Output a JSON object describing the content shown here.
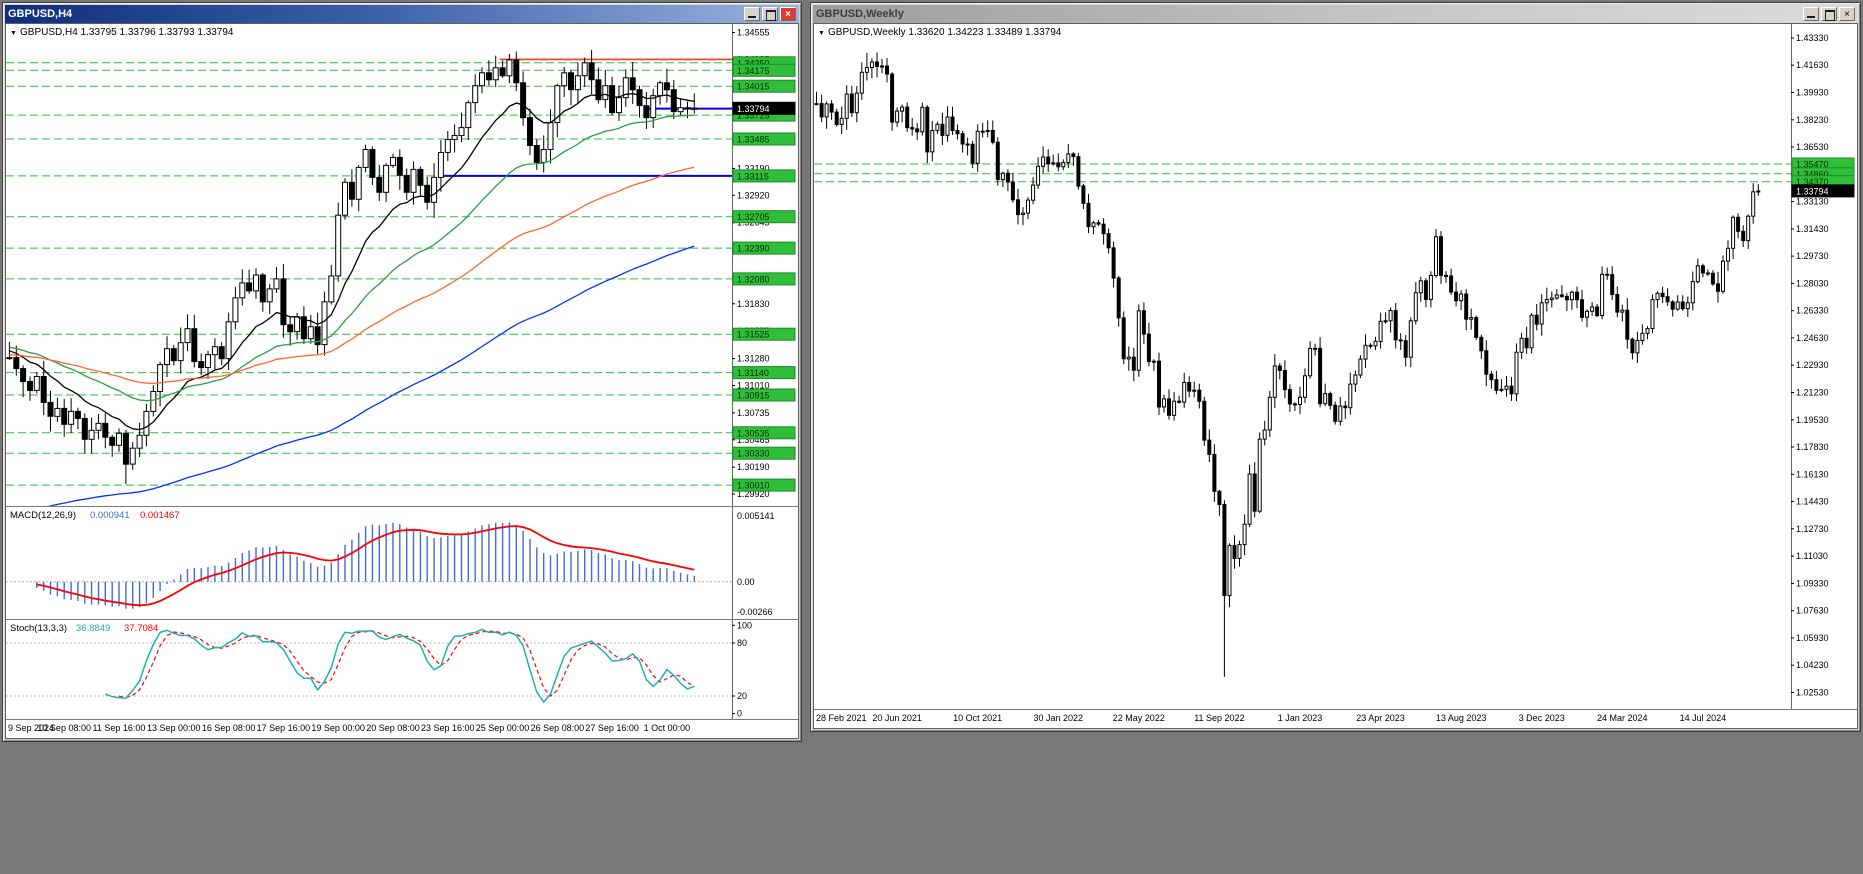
{
  "app": {
    "mdi_background": "#787878"
  },
  "window_buttons": {
    "close_glyph": "×"
  },
  "windows": [
    {
      "title": "GBPUSD,H4",
      "active": true
    },
    {
      "title": "GBPUSD,Weekly",
      "active": false
    }
  ],
  "chart_data": [
    {
      "type": "candlestick",
      "name": "gbpusd-h4",
      "title": "GBPUSD,H4",
      "header_quote": "GBPUSD,H4  1.33795 1.33796 1.33793 1.33794",
      "ohlc_display": {
        "open": "1.33795",
        "high": "1.33796",
        "low": "1.33793",
        "close": "1.33794"
      },
      "current_price": 1.33794,
      "current_price_label": "1.33794",
      "y_domain": [
        1.298,
        1.3464
      ],
      "y_ticks": [
        1.2992,
        1.3019,
        1.30465,
        1.30735,
        1.3101,
        1.3128,
        1.31555,
        1.3183,
        1.321,
        1.3237,
        1.32645,
        1.3292,
        1.3319,
        1.33465,
        1.3374,
        1.3401,
        1.34285,
        1.34555
      ],
      "x_labels": [
        "9 Sep 2024",
        "10 Sep 08:00",
        "11 Sep 16:00",
        "13 Sep 00:00",
        "16 Sep 08:00",
        "17 Sep 16:00",
        "19 Sep 00:00",
        "20 Sep 08:00",
        "23 Sep 16:00",
        "25 Sep 00:00",
        "26 Sep 08:00",
        "27 Sep 16:00",
        "1 Oct 00:00"
      ],
      "x_label_every": 8,
      "right_gap": 5,
      "volatility": 0.0016,
      "closes": [
        1.3129,
        1.3118,
        1.3105,
        1.3096,
        1.311,
        1.3084,
        1.307,
        1.3078,
        1.3062,
        1.3075,
        1.3068,
        1.3047,
        1.3056,
        1.3063,
        1.3049,
        1.3041,
        1.3053,
        1.3022,
        1.3038,
        1.3051,
        1.3075,
        1.3095,
        1.3122,
        1.3138,
        1.3126,
        1.3144,
        1.3158,
        1.3125,
        1.3119,
        1.3132,
        1.314,
        1.3128,
        1.3165,
        1.3189,
        1.3204,
        1.3196,
        1.3212,
        1.3185,
        1.3198,
        1.3208,
        1.3162,
        1.3155,
        1.317,
        1.3148,
        1.316,
        1.3142,
        1.3185,
        1.3211,
        1.3272,
        1.3305,
        1.3288,
        1.332,
        1.3338,
        1.331,
        1.3295,
        1.3322,
        1.333,
        1.3312,
        1.3295,
        1.3318,
        1.3302,
        1.3285,
        1.331,
        1.3335,
        1.3348,
        1.3352,
        1.336,
        1.3385,
        1.3402,
        1.3415,
        1.3408,
        1.342,
        1.3412,
        1.3428,
        1.3405,
        1.337,
        1.3342,
        1.3325,
        1.3338,
        1.3365,
        1.3402,
        1.3415,
        1.3398,
        1.3412,
        1.3425,
        1.3408,
        1.3388,
        1.3402,
        1.3375,
        1.339,
        1.341,
        1.3398,
        1.3382,
        1.337,
        1.3392,
        1.3405,
        1.3398,
        1.3376,
        1.338,
        1.3379,
        1.33794
      ],
      "overrides": {
        "17": {
          "low": 1.3002
        },
        "73": {
          "high": 1.3434
        }
      },
      "levels": [
        {
          "price": 1.3425,
          "label": "1.34250"
        },
        {
          "price": 1.34175,
          "label": "1.34175"
        },
        {
          "price": 1.34015,
          "label": "1.34015"
        },
        {
          "price": 1.33725,
          "label": "1.33725"
        },
        {
          "price": 1.33485,
          "label": "1.33485"
        },
        {
          "price": 1.33115,
          "label": "1.33115"
        },
        {
          "price": 1.32705,
          "label": "1.32705"
        },
        {
          "price": 1.3239,
          "label": "1.32390"
        },
        {
          "price": 1.3208,
          "label": "1.32080"
        },
        {
          "price": 1.31525,
          "label": "1.31525"
        },
        {
          "price": 1.3114,
          "label": "1.31140"
        },
        {
          "price": 1.30915,
          "label": "1.30915"
        },
        {
          "price": 1.30535,
          "label": "1.30535"
        },
        {
          "price": 1.3033,
          "label": "1.30330"
        },
        {
          "price": 1.3001,
          "label": "1.30010"
        }
      ],
      "extra_lines": [
        {
          "price": 1.34285,
          "color": "#ff3b1f",
          "from": 0.68,
          "width": 1.6
        },
        {
          "price": 1.33115,
          "color": "#0000ee",
          "from": 0.6,
          "width": 2
        },
        {
          "price": 1.3379,
          "color": "#0000ee",
          "from": 0.88,
          "width": 2
        }
      ],
      "moving_averages": [
        {
          "period": 13,
          "color": "#000000",
          "seed": 1.3137
        },
        {
          "period": 34,
          "color": "#2f9e44",
          "seed": 1.314
        },
        {
          "period": 72,
          "color": "#ff6633",
          "seed": 1.3132
        },
        {
          "period": 120,
          "color": "#0033ff",
          "seed": 1.2965
        }
      ],
      "indicators": {
        "macd": {
          "label": "MACD(12,26,9)",
          "value_main": "0.000941",
          "value_signal": "0.001467",
          "scale_labels": [
            "0.005141",
            "0.00",
            "-0.00266"
          ],
          "fast": 12,
          "slow": 26,
          "signal_period": 9,
          "histogram_color": "#4169e1",
          "signal_color": "#ff0000"
        },
        "stoch": {
          "label": "Stoch(13,3,3)",
          "value_main": "36.8849",
          "value_signal": "37.7084",
          "scale_labels": [
            "100",
            "80",
            "20",
            "0"
          ],
          "level_lines": [
            80,
            20
          ],
          "k_period": 13,
          "d_period": 3,
          "slowing": 3,
          "main_color": "#20b2aa",
          "signal_color": "#ff0000"
        }
      },
      "colors": {
        "level": "#2fbf3a",
        "level_box_border": "#1d8a26",
        "level_box_text": "#002b00",
        "bull": "#ffffff",
        "bear": "#000000",
        "current_box": "#000000"
      }
    },
    {
      "type": "candlestick",
      "name": "gbpusd-weekly",
      "title": "GBPUSD,Weekly",
      "header_quote": "GBPUSD,Weekly  1.33620 1.34223 1.33489 1.33794",
      "ohlc_display": {
        "open": "1.33620",
        "high": "1.34223",
        "low": "1.33489",
        "close": "1.33794"
      },
      "current_price": 1.33794,
      "current_price_label": "1.33794",
      "y_domain": [
        1.015,
        1.442
      ],
      "y_ticks": [
        1.4333,
        1.4163,
        1.3993,
        1.3823,
        1.3653,
        1.3483,
        1.3313,
        1.3143,
        1.2973,
        1.2803,
        1.2633,
        1.2463,
        1.2293,
        1.2123,
        1.1953,
        1.1783,
        1.1613,
        1.1443,
        1.1273,
        1.1103,
        1.0933,
        1.0763,
        1.0593,
        1.0423,
        1.0253
      ],
      "x_labels": [
        "28 Feb 2021",
        "20 Jun 2021",
        "10 Oct 2021",
        "30 Jan 2022",
        "22 May 2022",
        "11 Sep 2022",
        "1 Jan 2023",
        "23 Apr 2023",
        "13 Aug 2023",
        "3 Dec 2023",
        "24 Mar 2024",
        "14 Jul 2024"
      ],
      "x_label_every": 16,
      "right_gap": 6,
      "volatility": 0.0075,
      "closes": [
        1.3924,
        1.3841,
        1.3922,
        1.3871,
        1.3794,
        1.3832,
        1.3983,
        1.3867,
        1.3989,
        1.4119,
        1.4149,
        1.4183,
        1.4155,
        1.4158,
        1.4108,
        1.3809,
        1.3877,
        1.3902,
        1.3774,
        1.3766,
        1.3748,
        1.3901,
        1.3623,
        1.3757,
        1.3795,
        1.3726,
        1.384,
        1.3756,
        1.3736,
        1.3672,
        1.367,
        1.3552,
        1.3752,
        1.3749,
        1.3756,
        1.3683,
        1.345,
        1.349,
        1.3435,
        1.3324,
        1.3232,
        1.3241,
        1.3322,
        1.3416,
        1.3533,
        1.3591,
        1.3549,
        1.3554,
        1.353,
        1.3556,
        1.361,
        1.3593,
        1.341,
        1.3302,
        1.3157,
        1.3181,
        1.3172,
        1.3113,
        1.3025,
        1.2836,
        1.2588,
        1.2333,
        1.2343,
        1.2262,
        1.2632,
        1.2487,
        1.2316,
        1.2318,
        1.2033,
        1.2083,
        1.1981,
        1.2069,
        1.2062,
        1.2185,
        1.2132,
        1.2137,
        1.2068,
        1.1826,
        1.1737,
        1.1507,
        1.1424,
        1.0857,
        1.117,
        1.1089,
        1.1175,
        1.1302,
        1.1615,
        1.1383,
        1.1832,
        1.1889,
        1.2093,
        1.2288,
        1.226,
        1.2141,
        1.2052,
        1.2049,
        1.2093,
        1.2227,
        1.2398,
        1.2398,
        1.2053,
        1.2116,
        1.2043,
        1.1943,
        1.2038,
        1.2028,
        1.2175,
        1.2232,
        1.2331,
        1.2417,
        1.2414,
        1.2442,
        1.2567,
        1.257,
        1.2634,
        1.2451,
        1.2446,
        1.2343,
        1.257,
        1.2745,
        1.2819,
        1.2703,
        1.2852,
        1.3094,
        1.2853,
        1.285,
        1.2749,
        1.2695,
        1.2737,
        1.258,
        1.259,
        1.2467,
        1.2383,
        1.2237,
        1.2203,
        1.2136,
        1.2143,
        1.2162,
        1.2114,
        1.2374,
        1.2461,
        1.2402,
        1.2605,
        1.2549,
        1.2682,
        1.2702,
        1.2712,
        1.2731,
        1.2722,
        1.2701,
        1.2748,
        1.2701,
        1.2592,
        1.2629,
        1.2656,
        1.2603,
        1.286,
        1.2858,
        1.2734,
        1.2624,
        1.2636,
        1.2455,
        1.237,
        1.2447,
        1.2492,
        1.2522,
        1.2702,
        1.2741,
        1.272,
        1.2688,
        1.2643,
        1.2687,
        1.2645,
        1.2682,
        1.2814,
        1.2913,
        1.2868,
        1.2866,
        1.28,
        1.2754,
        1.2942,
        1.3022,
        1.3215,
        1.3128,
        1.307,
        1.3222,
        1.3374,
        1.3379
      ],
      "overrides": {
        "10": {
          "high": 1.424
        },
        "81": {
          "low": 1.035
        },
        "123": {
          "high": 1.3142
        },
        "187": {
          "high": 1.34223,
          "low": 1.33489
        }
      },
      "levels": [
        {
          "price": 1.3547,
          "label": "1.35470"
        },
        {
          "price": 1.3486,
          "label": "1.34860"
        },
        {
          "price": 1.3437,
          "label": "1.34370"
        }
      ],
      "extra_lines": [],
      "moving_averages": [],
      "colors": {
        "level": "#2fbf3a",
        "level_box_border": "#1d8a26",
        "level_box_text": "#002b00",
        "bull": "#ffffff",
        "bear": "#000000",
        "current_box": "#000000"
      }
    }
  ]
}
